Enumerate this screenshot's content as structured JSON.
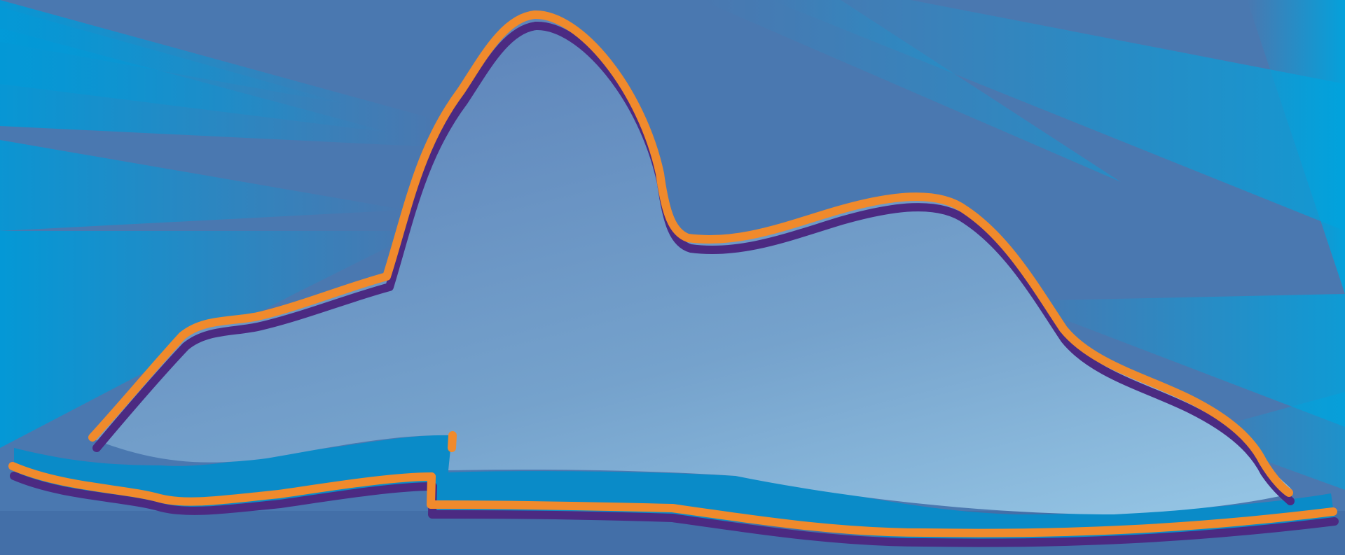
{
  "scene": {
    "subject": "sugarloaf-mountain-silhouette",
    "colors": {
      "background": "#4b79b2",
      "ray_light": "#009ad8",
      "ray_dark": "#0a86c8",
      "mountain_top": "#5f86bb",
      "mountain_bottom": "#8fbde0",
      "outline_orange": "#f08a2c",
      "outline_purple": "#4b2a82",
      "water": "#0a8bc8",
      "floor": "#436fa8"
    }
  }
}
